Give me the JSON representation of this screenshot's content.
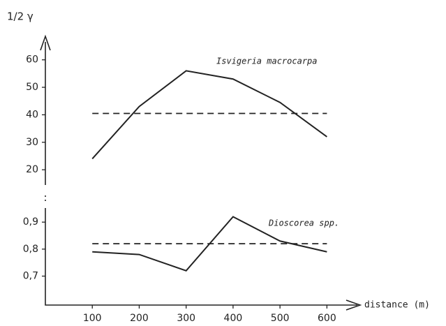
{
  "chart_data": [
    {
      "type": "line",
      "ylabel": "1/2 γ",
      "x": [
        100,
        200,
        300,
        400,
        500,
        600
      ],
      "xlim": [
        0,
        650
      ],
      "series": [
        {
          "name": "Isvigeria macrocarpa",
          "color": "#222222",
          "values": [
            24,
            43,
            56,
            53,
            44.5,
            32
          ],
          "sill": 40.5
        }
      ],
      "ylim": [
        17,
        65
      ],
      "yticks": [
        20,
        30,
        40,
        50,
        60
      ]
    },
    {
      "type": "line",
      "xlabel": "distance (m)",
      "x": [
        100,
        200,
        300,
        400,
        500,
        600
      ],
      "xlim": [
        0,
        650
      ],
      "xticks": [
        100,
        200,
        300,
        400,
        500,
        600
      ],
      "series": [
        {
          "name": "Dioscorea spp.",
          "color": "#222222",
          "values": [
            0.79,
            0.78,
            0.72,
            0.92,
            0.83,
            0.79
          ],
          "sill": 0.82
        }
      ],
      "ylim": [
        0.66,
        0.96
      ],
      "yticks": [
        {
          "value": 0.7,
          "label": "0,7"
        },
        {
          "value": 0.8,
          "label": "0,8"
        },
        {
          "value": 0.9,
          "label": "0,9"
        }
      ]
    }
  ]
}
